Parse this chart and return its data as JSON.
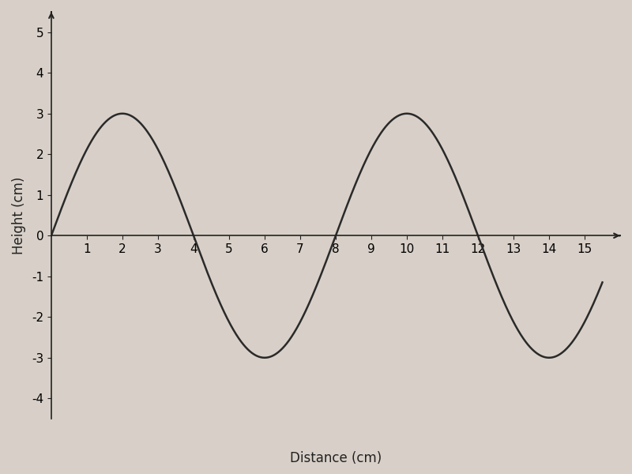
{
  "xlabel": "Distance (cm)",
  "ylabel": "Height (cm)",
  "xlim": [
    0,
    16
  ],
  "ylim": [
    -4.5,
    5.5
  ],
  "xticks": [
    1,
    2,
    3,
    4,
    5,
    6,
    7,
    8,
    9,
    10,
    11,
    12,
    13,
    14,
    15
  ],
  "yticks": [
    -4,
    -3,
    -2,
    -1,
    0,
    1,
    2,
    3,
    4,
    5
  ],
  "amplitude": 3,
  "wavelength": 8,
  "x_start": 0,
  "x_end": 15.5,
  "num_points": 1000,
  "line_color": "#2a2a2a",
  "line_width": 1.8,
  "background_color": "#d8d0c8",
  "fig_width": 8.0,
  "fig_height": 6.0,
  "xlabel_fontsize": 12,
  "ylabel_fontsize": 12,
  "tick_fontsize": 11,
  "spine_color": "#222222",
  "arrow_color": "#222222"
}
